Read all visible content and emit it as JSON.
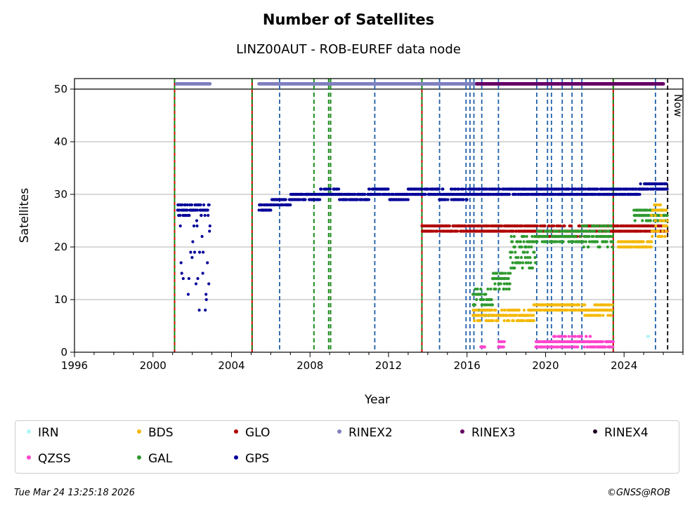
{
  "header": {
    "title": "Number of Satellites",
    "subtitle": "LINZ00AUT - ROB-EUREF data node"
  },
  "footer": {
    "timestamp": "Tue Mar 24 13:25:18 2026",
    "copyright": "©GNSS@ROB"
  },
  "legend": [
    {
      "label": "IRN",
      "color": "#b0f4f8"
    },
    {
      "label": "BDS",
      "color": "#f5b800"
    },
    {
      "label": "GLO",
      "color": "#b00000"
    },
    {
      "label": "RINEX2",
      "color": "#8080c0"
    },
    {
      "label": "RINEX3",
      "color": "#660066"
    },
    {
      "label": "RINEX4",
      "color": "#1a0020"
    },
    {
      "label": "QZSS",
      "color": "#ff44cc"
    },
    {
      "label": "GAL",
      "color": "#2e9a2e"
    },
    {
      "label": "GPS",
      "color": "#000099"
    }
  ],
  "chart_data": {
    "type": "scatter",
    "title": "Number of Satellites",
    "subtitle": "LINZ00AUT - ROB-EUREF data node",
    "xlabel": "Year",
    "ylabel": "Satellites",
    "xlim": [
      1996,
      2027
    ],
    "ylim": [
      0,
      52
    ],
    "x_ticks": [
      "1996",
      "2000",
      "2004",
      "2008",
      "2012",
      "2016",
      "2020",
      "2024"
    ],
    "y_ticks": [
      "0",
      "10",
      "20",
      "30",
      "40",
      "50"
    ],
    "grid": "horizontal",
    "now_label": "Now",
    "now_x": 2026.22,
    "rinex_bars": [
      {
        "name": "RINEX2",
        "y": 51,
        "ranges": [
          [
            2001.2,
            2002.9
          ],
          [
            2005.4,
            2016.5
          ]
        ],
        "color": "#8080c0"
      },
      {
        "name": "RINEX3",
        "y": 51,
        "ranges": [
          [
            2016.5,
            2026.0
          ]
        ],
        "color": "#660066"
      }
    ],
    "red_green_events": [
      2001.1,
      2005.05,
      2013.7,
      2023.45
    ],
    "green_events": [
      2008.2,
      2008.95,
      2009.05
    ],
    "blue_events": [
      2006.45,
      2011.3,
      2014.6,
      2015.95,
      2016.15,
      2016.35,
      2016.75,
      2017.6,
      2019.55,
      2020.1,
      2020.3,
      2020.85,
      2021.35,
      2021.85,
      2025.6
    ],
    "series": [
      {
        "name": "GPS",
        "color": "#000099",
        "segments": [
          {
            "x": [
              2001.25,
              2002.9
            ],
            "y": [
              26,
              28
            ],
            "spread": [
              8,
              28
            ]
          },
          {
            "x": [
              2005.4,
              2006.0
            ],
            "y": [
              27,
              28
            ]
          },
          {
            "x": [
              2006.0,
              2007.0
            ],
            "y": [
              28,
              29
            ]
          },
          {
            "x": [
              2007.0,
              2008.5
            ],
            "y": [
              29,
              30
            ]
          },
          {
            "x": [
              2008.5,
              2009.5
            ],
            "y": [
              30,
              31
            ]
          },
          {
            "x": [
              2009.5,
              2011.0
            ],
            "y": [
              29,
              30
            ]
          },
          {
            "x": [
              2011.0,
              2012.0
            ],
            "y": [
              30,
              31
            ]
          },
          {
            "x": [
              2012.0,
              2013.0
            ],
            "y": [
              29,
              30
            ]
          },
          {
            "x": [
              2013.0,
              2014.5
            ],
            "y": [
              30,
              31
            ]
          },
          {
            "x": [
              2014.5,
              2016.0
            ],
            "y": [
              29,
              31
            ]
          },
          {
            "x": [
              2016.0,
              2019.5
            ],
            "y": [
              30,
              31
            ]
          },
          {
            "x": [
              2019.5,
              2021.5
            ],
            "y": [
              30,
              31
            ]
          },
          {
            "x": [
              2021.5,
              2022.2
            ],
            "y": [
              30,
              31
            ]
          },
          {
            "x": [
              2022.2,
              2024.8
            ],
            "y": [
              30,
              31
            ]
          },
          {
            "x": [
              2024.8,
              2026.2
            ],
            "y": [
              31,
              32
            ]
          }
        ]
      },
      {
        "name": "GLO",
        "color": "#b00000",
        "segments": [
          {
            "x": [
              2013.7,
              2016.2
            ],
            "y": [
              23,
              24
            ]
          },
          {
            "x": [
              2016.2,
              2019.5
            ],
            "y": [
              23,
              24
            ]
          },
          {
            "x": [
              2019.5,
              2022.0
            ],
            "y": [
              22,
              24
            ]
          },
          {
            "x": [
              2022.0,
              2026.2
            ],
            "y": [
              23,
              24
            ]
          }
        ]
      },
      {
        "name": "GAL",
        "color": "#2e9a2e",
        "segments": [
          {
            "x": [
              2016.3,
              2017.3
            ],
            "y": [
              7,
              12
            ]
          },
          {
            "x": [
              2017.3,
              2018.2
            ],
            "y": [
              12,
              15
            ]
          },
          {
            "x": [
              2018.2,
              2019.5
            ],
            "y": [
              16,
              22
            ]
          },
          {
            "x": [
              2019.5,
              2021.8
            ],
            "y": [
              21,
              23
            ]
          },
          {
            "x": [
              2021.8,
              2023.4
            ],
            "y": [
              20,
              24
            ]
          },
          {
            "x": [
              2024.5,
              2026.2
            ],
            "y": [
              25,
              27
            ]
          }
        ]
      },
      {
        "name": "BDS",
        "color": "#f5b800",
        "segments": [
          {
            "x": [
              2016.3,
              2019.4
            ],
            "y": [
              6,
              8
            ]
          },
          {
            "x": [
              2019.4,
              2022.0
            ],
            "y": [
              8,
              9
            ]
          },
          {
            "x": [
              2022.0,
              2023.4
            ],
            "y": [
              7,
              9
            ]
          },
          {
            "x": [
              2023.7,
              2025.4
            ],
            "y": [
              20,
              21
            ]
          },
          {
            "x": [
              2025.4,
              2026.2
            ],
            "y": [
              22,
              28
            ]
          }
        ]
      },
      {
        "name": "QZSS",
        "color": "#ff44cc",
        "segments": [
          {
            "x": [
              2016.7,
              2016.9
            ],
            "y": [
              1,
              1
            ]
          },
          {
            "x": [
              2017.6,
              2017.9
            ],
            "y": [
              1,
              2
            ]
          },
          {
            "x": [
              2019.5,
              2020.4
            ],
            "y": [
              1,
              2
            ]
          },
          {
            "x": [
              2020.4,
              2022.3
            ],
            "y": [
              1,
              3
            ]
          },
          {
            "x": [
              2022.3,
              2023.45
            ],
            "y": [
              1,
              2
            ]
          }
        ]
      },
      {
        "name": "IRN",
        "color": "#b0f4f8",
        "segments": [
          {
            "x": [
              2025.2,
              2025.25
            ],
            "y": [
              3,
              3
            ]
          }
        ]
      }
    ]
  }
}
